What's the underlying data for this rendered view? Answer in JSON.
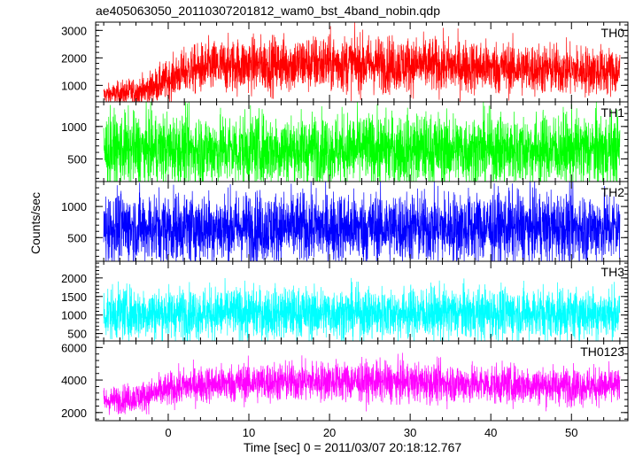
{
  "chart_data": {
    "type": "line",
    "title": "ae405063050_20110307201812_wam0_bst_4band_nobin.qdp",
    "xlabel": "Time [sec] 0 = 2011/03/07 20:18:12.767",
    "ylabel": "Counts/sec",
    "xlim": [
      -9,
      57
    ],
    "x_ticks": [
      0,
      10,
      20,
      30,
      40,
      50
    ],
    "x_data_range": [
      -8,
      56
    ],
    "grid": false,
    "panels": [
      {
        "name": "TH0",
        "color": "#ff0000",
        "ylim": [
          400,
          3300
        ],
        "y_ticks": [
          1000,
          2000,
          3000
        ],
        "profile": [
          [
            -8,
            650
          ],
          [
            -3,
            800
          ],
          [
            0,
            1200
          ],
          [
            2,
            1500
          ],
          [
            5,
            1650
          ],
          [
            10,
            1750
          ],
          [
            20,
            1800
          ],
          [
            30,
            1750
          ],
          [
            40,
            1650
          ],
          [
            50,
            1550
          ],
          [
            56,
            1500
          ]
        ],
        "spread": [
          [
            -8,
            200
          ],
          [
            0,
            400
          ],
          [
            5,
            550
          ],
          [
            20,
            600
          ],
          [
            40,
            550
          ],
          [
            56,
            500
          ]
        ]
      },
      {
        "name": "TH1",
        "color": "#00ff00",
        "ylim": [
          150,
          1380
        ],
        "y_ticks": [
          500,
          1000
        ],
        "profile": [
          [
            -8,
            640
          ],
          [
            56,
            640
          ]
        ],
        "spread": [
          [
            -8,
            320
          ],
          [
            56,
            320
          ]
        ]
      },
      {
        "name": "TH2",
        "color": "#0000ff",
        "ylim": [
          120,
          1400
        ],
        "y_ticks": [
          500,
          1000
        ],
        "profile": [
          [
            -8,
            660
          ],
          [
            56,
            660
          ]
        ],
        "spread": [
          [
            -8,
            330
          ],
          [
            56,
            330
          ]
        ]
      },
      {
        "name": "TH3",
        "color": "#00ffff",
        "ylim": [
          300,
          2450
        ],
        "y_ticks": [
          500,
          1000,
          1500,
          2000
        ],
        "profile": [
          [
            -8,
            1050
          ],
          [
            56,
            1050
          ]
        ],
        "spread": [
          [
            -8,
            400
          ],
          [
            56,
            400
          ]
        ]
      },
      {
        "name": "TH0123",
        "color": "#ff00ff",
        "ylim": [
          1500,
          6400
        ],
        "y_ticks": [
          2000,
          4000,
          6000
        ],
        "profile": [
          [
            -8,
            2700
          ],
          [
            -3,
            3000
          ],
          [
            0,
            3400
          ],
          [
            3,
            3700
          ],
          [
            10,
            3850
          ],
          [
            20,
            3950
          ],
          [
            30,
            3850
          ],
          [
            40,
            3750
          ],
          [
            50,
            3650
          ],
          [
            56,
            3600
          ]
        ],
        "spread": [
          [
            -8,
            450
          ],
          [
            0,
            600
          ],
          [
            10,
            700
          ],
          [
            30,
            700
          ],
          [
            56,
            650
          ]
        ]
      }
    ]
  }
}
